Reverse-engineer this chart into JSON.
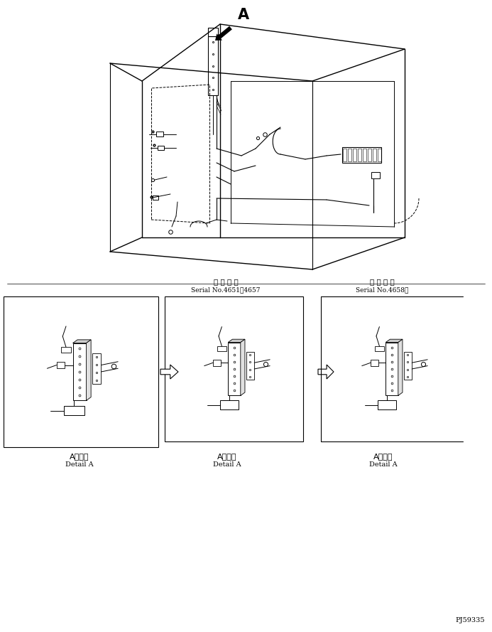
{
  "bg_color": "#ffffff",
  "line_color": "#000000",
  "text_color": "#000000",
  "serial1_jp": "適 用 号 機",
  "serial1_en": "Serial No.4651～4657",
  "serial2_jp": "適 用 号 機",
  "serial2_en": "Serial No.4658～",
  "label_jp": "A　詳細",
  "label_en": "Detail A",
  "part_code": "PJ59335",
  "fig_width": 6.93,
  "fig_height": 8.89,
  "dpi": 100
}
